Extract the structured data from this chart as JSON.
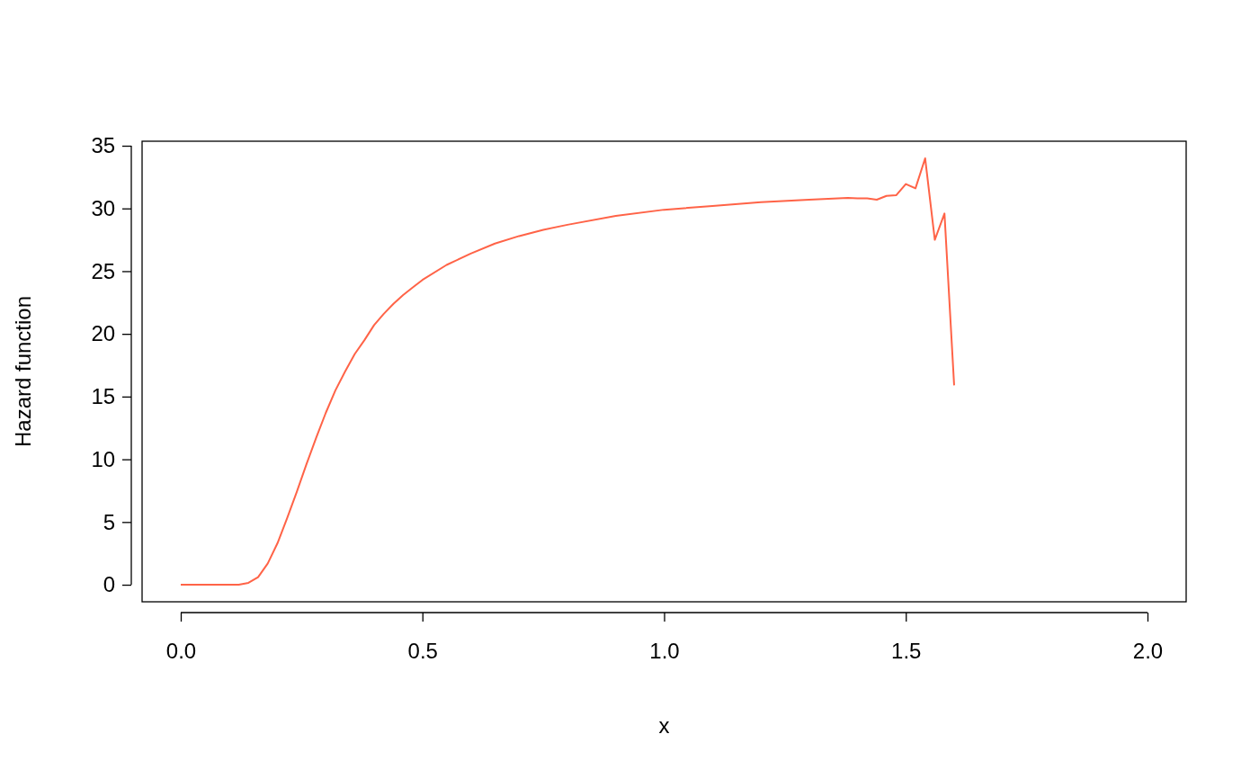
{
  "chart_data": {
    "type": "line",
    "xlabel": "x",
    "ylabel": "Hazard function",
    "x": [
      0,
      0.02,
      0.04,
      0.06,
      0.08,
      0.1,
      0.12,
      0.14,
      0.16,
      0.18,
      0.2,
      0.22,
      0.24,
      0.26,
      0.28,
      0.3,
      0.32,
      0.34,
      0.36,
      0.38,
      0.4,
      0.42,
      0.44,
      0.46,
      0.48,
      0.5,
      0.55,
      0.6,
      0.65,
      0.7,
      0.75,
      0.8,
      0.9,
      1.0,
      1.1,
      1.2,
      1.3,
      1.36,
      1.38,
      1.4,
      1.42,
      1.44,
      1.46,
      1.48,
      1.5,
      1.52,
      1.54,
      1.56,
      1.58,
      1.6
    ],
    "series": [
      {
        "color": "#ff6347",
        "values": [
          0,
          0,
          0,
          0,
          0,
          0,
          0,
          0.15,
          0.6,
          1.7,
          3.3,
          5.3,
          7.4,
          9.6,
          11.7,
          13.7,
          15.5,
          17.0,
          18.4,
          19.5,
          20.7,
          21.6,
          22.4,
          23.1,
          23.7,
          24.3,
          25.5,
          26.4,
          27.2,
          27.8,
          28.3,
          28.7,
          29.4,
          29.9,
          30.2,
          30.5,
          30.7,
          30.8,
          30.85,
          30.8,
          30.8,
          30.7,
          31.0,
          31.05,
          31.95,
          31.6,
          34.0,
          27.5,
          29.6,
          15.9
        ]
      }
    ],
    "xlim": [
      -0.08,
      2.08
    ],
    "ylim": [
      -1.36,
      35.36
    ],
    "xticks": [
      {
        "value": 0,
        "label": "0.0"
      },
      {
        "value": 0.5,
        "label": "0.5"
      },
      {
        "value": 1,
        "label": "1.0"
      },
      {
        "value": 1.5,
        "label": "1.5"
      },
      {
        "value": 2,
        "label": "2.0"
      }
    ],
    "yticks": [
      0,
      5,
      10,
      15,
      20,
      25,
      30,
      35
    ],
    "grid": false,
    "marker": "none",
    "line_style": "solid"
  }
}
